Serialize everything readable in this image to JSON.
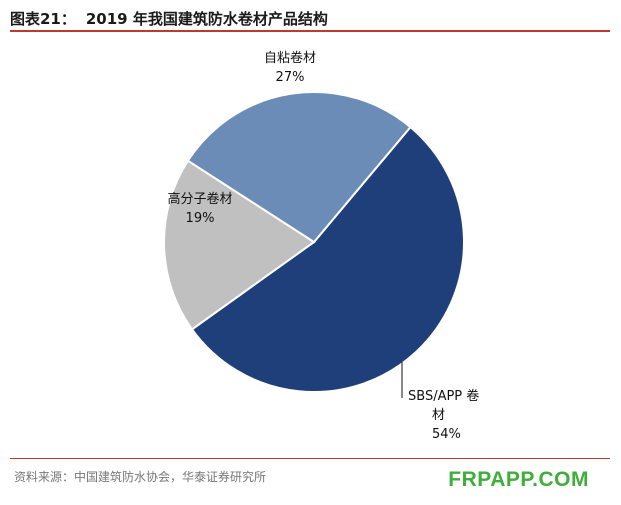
{
  "header": {
    "figure_label": "图表21：",
    "title": "2019 年我国建筑防水卷材产品结构"
  },
  "footer": {
    "source": "资料来源：中国建筑防水协会，华泰证券研究所",
    "watermark": "FRPAPP.COM"
  },
  "chart_data": {
    "type": "pie",
    "title": "2019 年我国建筑防水卷材产品结构",
    "slices": [
      {
        "label": "SBS/APP卷材",
        "label_lines": [
          "SBS/APP 卷",
          "材"
        ],
        "value": 54,
        "value_label": "54%",
        "color": "#1f3f7a"
      },
      {
        "label": "高分子卷材",
        "label_lines": [
          "高分子卷材"
        ],
        "value": 19,
        "value_label": "19%",
        "color": "#c0c0c0"
      },
      {
        "label": "自粘卷材",
        "label_lines": [
          "自粘卷材"
        ],
        "value": 27,
        "value_label": "27%",
        "color": "#6a8cb6"
      }
    ],
    "legend": "none"
  }
}
